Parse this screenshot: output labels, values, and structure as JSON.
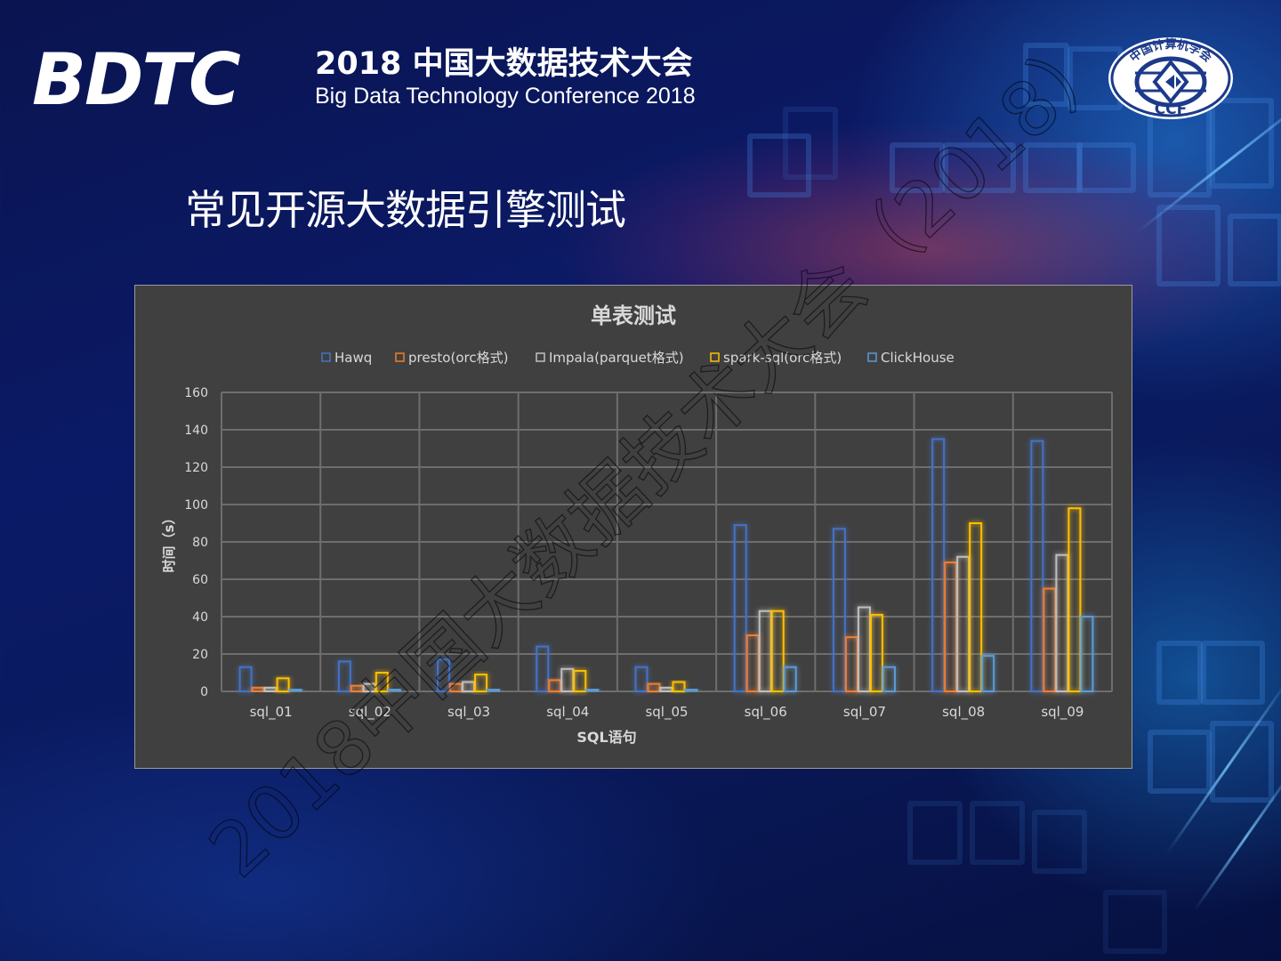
{
  "header": {
    "logo_mark": "BDTC",
    "logo_cn": "2018 中国大数据技术大会",
    "logo_en": "Big Data Technology Conference 2018",
    "org_badge_text": "中国计算机学会",
    "org_badge_abbr": "CCF"
  },
  "slide": {
    "title": "常见开源大数据引擎测试"
  },
  "watermark": {
    "text": "2018中国大数据技术大会（2018）"
  },
  "chart_data": {
    "type": "bar",
    "title": "单表测试",
    "xlabel": "SQL语句",
    "ylabel": "时间（s）",
    "ylim": [
      0,
      160
    ],
    "yticks": [
      0,
      20,
      40,
      60,
      80,
      100,
      120,
      140,
      160
    ],
    "grid": true,
    "legend_position": "top",
    "categories": [
      "sql_01",
      "sql_02",
      "sql_03",
      "sql_04",
      "sql_05",
      "sql_06",
      "sql_07",
      "sql_08",
      "sql_09"
    ],
    "series": [
      {
        "name": "Hawq",
        "color": "#4472c4",
        "values": [
          13,
          16,
          17,
          24,
          13,
          89,
          87,
          135,
          134
        ]
      },
      {
        "name": "presto(orc格式)",
        "color": "#ed7d31",
        "values": [
          2,
          3,
          4,
          6,
          4,
          30,
          29,
          69,
          55
        ]
      },
      {
        "name": "Impala(parquet格式)",
        "color": "#bfbfbf",
        "values": [
          2,
          4,
          5,
          12,
          2,
          43,
          45,
          72,
          73
        ]
      },
      {
        "name": "spark-sql(orc格式)",
        "color": "#ffc000",
        "values": [
          7,
          10,
          9,
          11,
          5,
          43,
          41,
          90,
          98
        ]
      },
      {
        "name": "ClickHouse",
        "color": "#5b9bd5",
        "values": [
          1,
          1,
          1,
          1,
          1,
          13,
          13,
          19,
          40
        ]
      }
    ]
  }
}
